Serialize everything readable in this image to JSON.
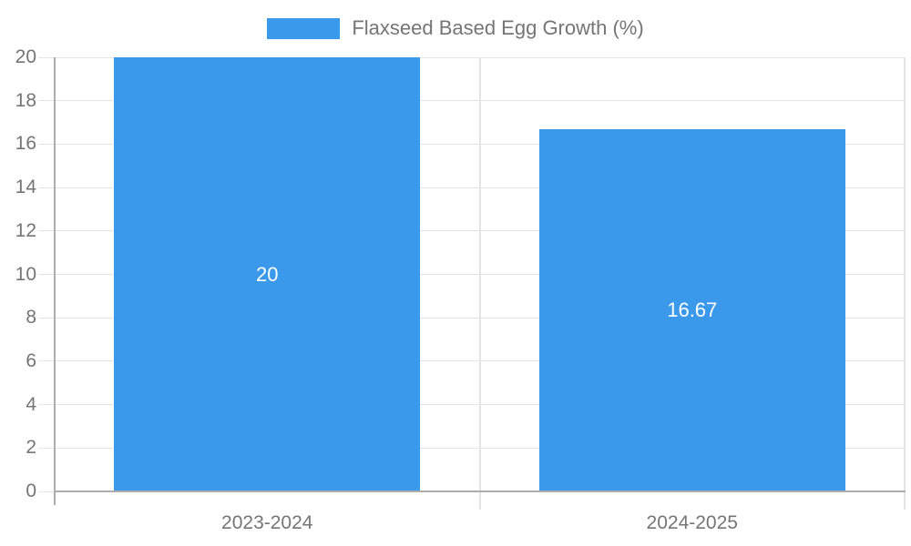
{
  "legend": {
    "label": "Flaxseed Based Egg Growth (%)"
  },
  "colors": {
    "bar": "#3B99EC",
    "grid": "#E4E4E4",
    "axis": "#ACACAC",
    "tick_text": "#757575",
    "data_label_text": "#FFFFFF",
    "background": "#FFFFFF"
  },
  "chart_data": {
    "type": "bar",
    "categories": [
      "2023-2024",
      "2024-2025"
    ],
    "values": [
      20,
      16.67
    ],
    "data_labels": [
      "20",
      "16.67"
    ],
    "ytick_labels": [
      "0",
      "2",
      "4",
      "6",
      "8",
      "10",
      "12",
      "14",
      "16",
      "18",
      "20"
    ],
    "title": "Flaxseed Based Egg Growth (%)",
    "xlabel": "",
    "ylabel": "",
    "ylim": [
      0,
      20
    ],
    "ytick_step": 2,
    "grid": true,
    "legend_position": "top-center",
    "bar_color": "#3B99EC"
  }
}
